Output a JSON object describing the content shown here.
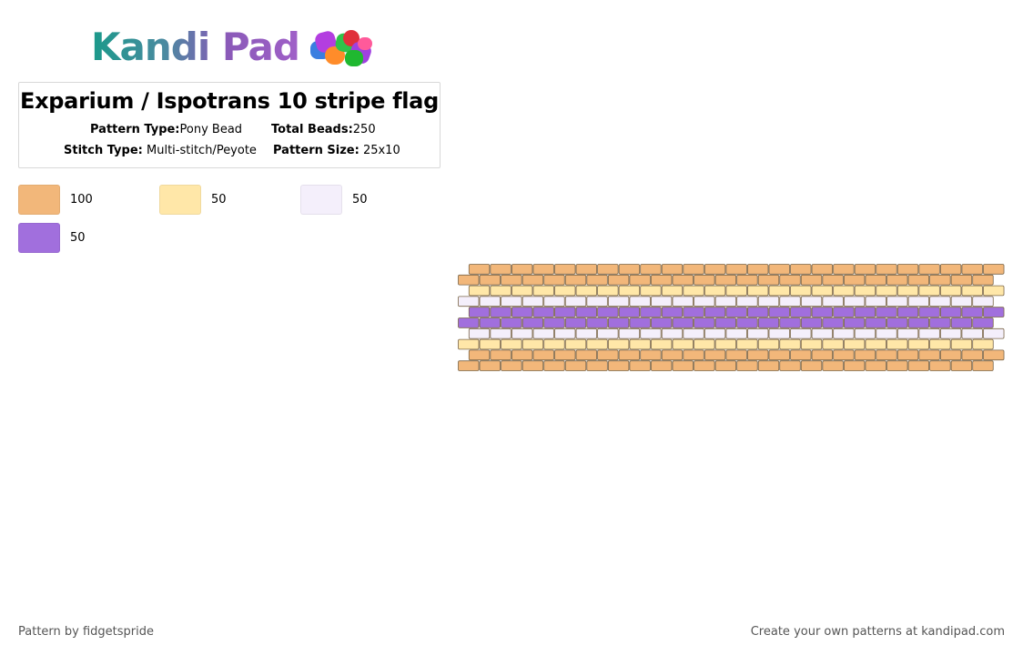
{
  "logo": {
    "text": "Kandi Pad"
  },
  "pattern": {
    "title": "Exparium / Ispotrans 10 stripe flag",
    "type_label": "Pattern Type:",
    "type_value": "Pony Bead",
    "total_label": "Total Beads:",
    "total_value": "250",
    "stitch_label": "Stitch Type:",
    "stitch_value": "Multi-stitch/Peyote",
    "size_label": "Pattern Size:",
    "size_value": "25x10"
  },
  "colors": [
    {
      "hex": "#f2b77a",
      "count": "100"
    },
    {
      "hex": "#ffe7a8",
      "count": "50"
    },
    {
      "hex": "#f4effb",
      "count": "50"
    },
    {
      "hex": "#a16fdd",
      "count": "50"
    }
  ],
  "bead_grid": {
    "columns": 25,
    "rows": [
      0,
      0,
      1,
      2,
      3,
      3,
      2,
      1,
      0,
      0
    ],
    "outline": "#7a6548"
  },
  "footer": {
    "author": "Pattern by fidgetspride",
    "cta": "Create your own patterns at kandipad.com"
  }
}
